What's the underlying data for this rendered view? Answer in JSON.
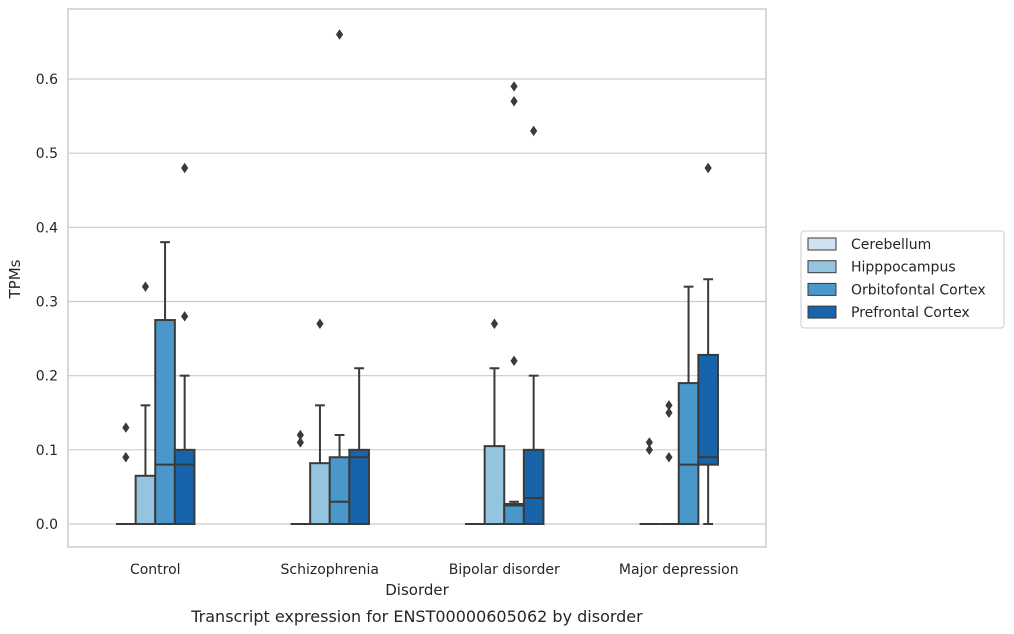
{
  "chart_data": {
    "type": "boxplot",
    "title": "",
    "caption": "Transcript expression for ENST00000605062 by disorder",
    "xlabel": "Disorder",
    "ylabel": "TPMs",
    "ylim": [
      -0.032,
      0.69
    ],
    "yticks": [
      0.0,
      0.1,
      0.2,
      0.3,
      0.4,
      0.5,
      0.6
    ],
    "ytick_labels": [
      "0.0",
      "0.1",
      "0.2",
      "0.3",
      "0.4",
      "0.5",
      "0.6"
    ],
    "grid": "horizontal",
    "legend_position": "right",
    "categories": [
      "Control",
      "Schizophrenia",
      "Bipolar disorder",
      "Major depression"
    ],
    "series": [
      {
        "name": "Cerebellum",
        "color": "#d0e1f2",
        "boxes": [
          {
            "q1": 0.0,
            "median": 0.0,
            "q3": 0.0,
            "whislo": 0.0,
            "whishi": 0.0,
            "fliers": [
              0.09,
              0.13
            ]
          },
          {
            "q1": 0.0,
            "median": 0.0,
            "q3": 0.0,
            "whislo": 0.0,
            "whishi": 0.0,
            "fliers": [
              0.11,
              0.12
            ]
          },
          {
            "q1": 0.0,
            "median": 0.0,
            "q3": 0.0,
            "whislo": 0.0,
            "whishi": 0.0,
            "fliers": []
          },
          {
            "q1": 0.0,
            "median": 0.0,
            "q3": 0.0,
            "whislo": 0.0,
            "whishi": 0.0,
            "fliers": [
              0.1,
              0.11
            ]
          }
        ]
      },
      {
        "name": "Hipppocampus",
        "color": "#94c4df",
        "boxes": [
          {
            "q1": 0.0,
            "median": 0.0,
            "q3": 0.065,
            "whislo": 0.0,
            "whishi": 0.16,
            "fliers": [
              0.32
            ]
          },
          {
            "q1": 0.0,
            "median": 0.0,
            "q3": 0.082,
            "whislo": 0.0,
            "whishi": 0.16,
            "fliers": [
              0.27
            ]
          },
          {
            "q1": 0.0,
            "median": 0.0,
            "q3": 0.105,
            "whislo": 0.0,
            "whishi": 0.21,
            "fliers": [
              0.27
            ]
          },
          {
            "q1": 0.0,
            "median": 0.0,
            "q3": 0.0,
            "whislo": 0.0,
            "whishi": 0.0,
            "fliers": [
              0.09,
              0.15,
              0.16
            ]
          }
        ]
      },
      {
        "name": "Orbitofontal Cortex",
        "color": "#4a98c9",
        "boxes": [
          {
            "q1": 0.0,
            "median": 0.08,
            "q3": 0.275,
            "whislo": 0.0,
            "whishi": 0.38,
            "fliers": []
          },
          {
            "q1": 0.0,
            "median": 0.03,
            "q3": 0.09,
            "whislo": 0.0,
            "whishi": 0.12,
            "fliers": [
              0.66
            ]
          },
          {
            "q1": 0.0,
            "median": 0.025,
            "q3": 0.027,
            "whislo": 0.0,
            "whishi": 0.03,
            "fliers": [
              0.22,
              0.57,
              0.59
            ]
          },
          {
            "q1": 0.0,
            "median": 0.08,
            "q3": 0.19,
            "whislo": 0.0,
            "whishi": 0.32,
            "fliers": []
          }
        ]
      },
      {
        "name": "Prefrontal Cortex",
        "color": "#1764ab",
        "boxes": [
          {
            "q1": 0.0,
            "median": 0.08,
            "q3": 0.1,
            "whislo": 0.0,
            "whishi": 0.2,
            "fliers": [
              0.28,
              0.48
            ]
          },
          {
            "q1": 0.0,
            "median": 0.09,
            "q3": 0.1,
            "whislo": 0.0,
            "whishi": 0.21,
            "fliers": []
          },
          {
            "q1": 0.0,
            "median": 0.035,
            "q3": 0.1,
            "whislo": 0.0,
            "whishi": 0.2,
            "fliers": [
              0.53
            ]
          },
          {
            "q1": 0.08,
            "median": 0.09,
            "q3": 0.228,
            "whislo": 0.0,
            "whishi": 0.33,
            "fliers": [
              0.48
            ]
          }
        ]
      }
    ]
  }
}
